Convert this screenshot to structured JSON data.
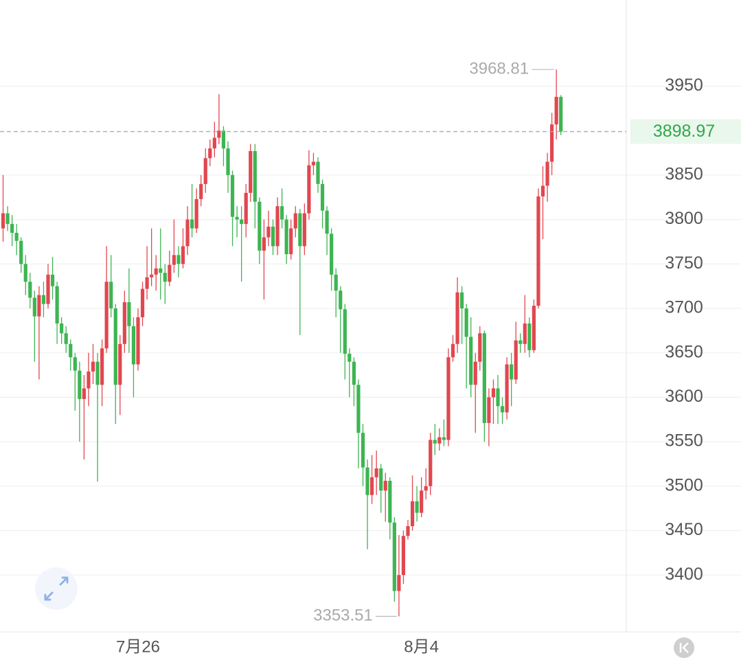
{
  "chart_data": {
    "type": "candlestick",
    "up_color": "#e1474f",
    "down_color": "#3db552",
    "ylim": [
      3336,
      4047
    ],
    "yticks": [
      3400,
      3450,
      3500,
      3550,
      3600,
      3650,
      3700,
      3750,
      3800,
      3850,
      3950
    ],
    "grid": true,
    "x_labels": [
      {
        "at": 30,
        "label": "7月26"
      },
      {
        "at": 93,
        "label": "8月4"
      }
    ],
    "high_mark": {
      "at": 123
    },
    "low_mark": {
      "at": 88
    },
    "last_price": {
      "at": 124
    },
    "candles": [
      {
        "open": 3790,
        "high": 3850,
        "low": 3775,
        "close": 3807
      },
      {
        "open": 3807,
        "high": 3815,
        "low": 3787,
        "close": 3795
      },
      {
        "open": 3795,
        "high": 3805,
        "low": 3770,
        "close": 3785
      },
      {
        "open": 3785,
        "high": 3795,
        "low": 3760,
        "close": 3776
      },
      {
        "open": 3776,
        "high": 3780,
        "low": 3740,
        "close": 3750
      },
      {
        "open": 3750,
        "high": 3760,
        "low": 3715,
        "close": 3730
      },
      {
        "open": 3730,
        "high": 3740,
        "low": 3700,
        "close": 3712
      },
      {
        "open": 3712,
        "high": 3720,
        "low": 3640,
        "close": 3691
      },
      {
        "open": 3691,
        "high": 3725,
        "low": 3620,
        "close": 3715
      },
      {
        "open": 3715,
        "high": 3730,
        "low": 3690,
        "close": 3705
      },
      {
        "open": 3705,
        "high": 3750,
        "low": 3700,
        "close": 3738
      },
      {
        "open": 3738,
        "high": 3758,
        "low": 3710,
        "close": 3725
      },
      {
        "open": 3725,
        "high": 3730,
        "low": 3660,
        "close": 3683
      },
      {
        "open": 3683,
        "high": 3690,
        "low": 3660,
        "close": 3672
      },
      {
        "open": 3672,
        "high": 3680,
        "low": 3650,
        "close": 3660
      },
      {
        "open": 3660,
        "high": 3665,
        "low": 3630,
        "close": 3645
      },
      {
        "open": 3645,
        "high": 3650,
        "low": 3585,
        "close": 3630
      },
      {
        "open": 3630,
        "high": 3640,
        "low": 3550,
        "close": 3598
      },
      {
        "open": 3598,
        "high": 3625,
        "low": 3530,
        "close": 3610
      },
      {
        "open": 3610,
        "high": 3650,
        "low": 3590,
        "close": 3629
      },
      {
        "open": 3629,
        "high": 3660,
        "low": 3615,
        "close": 3640
      },
      {
        "open": 3640,
        "high": 3650,
        "low": 3505,
        "close": 3614
      },
      {
        "open": 3614,
        "high": 3665,
        "low": 3590,
        "close": 3655
      },
      {
        "open": 3655,
        "high": 3770,
        "low": 3650,
        "close": 3730
      },
      {
        "open": 3730,
        "high": 3760,
        "low": 3690,
        "close": 3700
      },
      {
        "open": 3700,
        "high": 3705,
        "low": 3570,
        "close": 3614
      },
      {
        "open": 3614,
        "high": 3670,
        "low": 3580,
        "close": 3660
      },
      {
        "open": 3660,
        "high": 3720,
        "low": 3650,
        "close": 3707
      },
      {
        "open": 3707,
        "high": 3745,
        "low": 3650,
        "close": 3680
      },
      {
        "open": 3680,
        "high": 3690,
        "low": 3600,
        "close": 3637
      },
      {
        "open": 3637,
        "high": 3700,
        "low": 3630,
        "close": 3690
      },
      {
        "open": 3690,
        "high": 3730,
        "low": 3680,
        "close": 3722
      },
      {
        "open": 3722,
        "high": 3770,
        "low": 3710,
        "close": 3735
      },
      {
        "open": 3735,
        "high": 3790,
        "low": 3725,
        "close": 3738
      },
      {
        "open": 3738,
        "high": 3760,
        "low": 3720,
        "close": 3745
      },
      {
        "open": 3745,
        "high": 3790,
        "low": 3710,
        "close": 3740
      },
      {
        "open": 3740,
        "high": 3750,
        "low": 3705,
        "close": 3730
      },
      {
        "open": 3730,
        "high": 3765,
        "low": 3725,
        "close": 3749
      },
      {
        "open": 3749,
        "high": 3800,
        "low": 3740,
        "close": 3760
      },
      {
        "open": 3760,
        "high": 3770,
        "low": 3735,
        "close": 3750
      },
      {
        "open": 3750,
        "high": 3790,
        "low": 3745,
        "close": 3770
      },
      {
        "open": 3770,
        "high": 3815,
        "low": 3760,
        "close": 3800
      },
      {
        "open": 3800,
        "high": 3840,
        "low": 3780,
        "close": 3790
      },
      {
        "open": 3790,
        "high": 3835,
        "low": 3785,
        "close": 3823
      },
      {
        "open": 3823,
        "high": 3850,
        "low": 3815,
        "close": 3840
      },
      {
        "open": 3840,
        "high": 3880,
        "low": 3830,
        "close": 3869
      },
      {
        "open": 3869,
        "high": 3890,
        "low": 3860,
        "close": 3880
      },
      {
        "open": 3880,
        "high": 3910,
        "low": 3870,
        "close": 3892
      },
      {
        "open": 3892,
        "high": 3941,
        "low": 3885,
        "close": 3900
      },
      {
        "open": 3900,
        "high": 3905,
        "low": 3860,
        "close": 3880
      },
      {
        "open": 3880,
        "high": 3888,
        "low": 3830,
        "close": 3850
      },
      {
        "open": 3850,
        "high": 3855,
        "low": 3770,
        "close": 3803
      },
      {
        "open": 3803,
        "high": 3815,
        "low": 3780,
        "close": 3800
      },
      {
        "open": 3800,
        "high": 3815,
        "low": 3730,
        "close": 3795
      },
      {
        "open": 3795,
        "high": 3840,
        "low": 3780,
        "close": 3830
      },
      {
        "open": 3830,
        "high": 3885,
        "low": 3820,
        "close": 3877
      },
      {
        "open": 3877,
        "high": 3885,
        "low": 3790,
        "close": 3820
      },
      {
        "open": 3820,
        "high": 3825,
        "low": 3750,
        "close": 3765
      },
      {
        "open": 3765,
        "high": 3800,
        "low": 3710,
        "close": 3780
      },
      {
        "open": 3780,
        "high": 3810,
        "low": 3770,
        "close": 3792
      },
      {
        "open": 3792,
        "high": 3800,
        "low": 3760,
        "close": 3770
      },
      {
        "open": 3770,
        "high": 3825,
        "low": 3760,
        "close": 3815
      },
      {
        "open": 3815,
        "high": 3835,
        "low": 3790,
        "close": 3800
      },
      {
        "open": 3800,
        "high": 3805,
        "low": 3750,
        "close": 3761
      },
      {
        "open": 3761,
        "high": 3800,
        "low": 3755,
        "close": 3790
      },
      {
        "open": 3790,
        "high": 3815,
        "low": 3780,
        "close": 3807
      },
      {
        "open": 3807,
        "high": 3812,
        "low": 3670,
        "close": 3770
      },
      {
        "open": 3770,
        "high": 3818,
        "low": 3760,
        "close": 3807
      },
      {
        "open": 3807,
        "high": 3878,
        "low": 3800,
        "close": 3861
      },
      {
        "open": 3861,
        "high": 3875,
        "low": 3850,
        "close": 3865
      },
      {
        "open": 3865,
        "high": 3870,
        "low": 3830,
        "close": 3840
      },
      {
        "open": 3840,
        "high": 3845,
        "low": 3790,
        "close": 3810
      },
      {
        "open": 3810,
        "high": 3815,
        "low": 3760,
        "close": 3784
      },
      {
        "open": 3784,
        "high": 3790,
        "low": 3720,
        "close": 3738
      },
      {
        "open": 3738,
        "high": 3745,
        "low": 3690,
        "close": 3720
      },
      {
        "open": 3720,
        "high": 3725,
        "low": 3650,
        "close": 3699
      },
      {
        "open": 3699,
        "high": 3705,
        "low": 3620,
        "close": 3649
      },
      {
        "open": 3649,
        "high": 3655,
        "low": 3600,
        "close": 3640
      },
      {
        "open": 3640,
        "high": 3645,
        "low": 3590,
        "close": 3614
      },
      {
        "open": 3614,
        "high": 3620,
        "low": 3520,
        "close": 3560
      },
      {
        "open": 3560,
        "high": 3570,
        "low": 3500,
        "close": 3521
      },
      {
        "open": 3521,
        "high": 3530,
        "low": 3429,
        "close": 3490
      },
      {
        "open": 3490,
        "high": 3535,
        "low": 3480,
        "close": 3510
      },
      {
        "open": 3510,
        "high": 3540,
        "low": 3490,
        "close": 3520
      },
      {
        "open": 3520,
        "high": 3525,
        "low": 3470,
        "close": 3495
      },
      {
        "open": 3495,
        "high": 3515,
        "low": 3460,
        "close": 3506
      },
      {
        "open": 3506,
        "high": 3510,
        "low": 3440,
        "close": 3459
      },
      {
        "open": 3459,
        "high": 3465,
        "low": 3370,
        "close": 3382
      },
      {
        "open": 3382,
        "high": 3445,
        "low": 3353.51,
        "close": 3400
      },
      {
        "open": 3400,
        "high": 3450,
        "low": 3390,
        "close": 3444
      },
      {
        "open": 3444,
        "high": 3462,
        "low": 3440,
        "close": 3455
      },
      {
        "open": 3455,
        "high": 3512,
        "low": 3450,
        "close": 3483
      },
      {
        "open": 3483,
        "high": 3500,
        "low": 3460,
        "close": 3470
      },
      {
        "open": 3470,
        "high": 3510,
        "low": 3465,
        "close": 3495
      },
      {
        "open": 3495,
        "high": 3520,
        "low": 3485,
        "close": 3500
      },
      {
        "open": 3500,
        "high": 3560,
        "low": 3490,
        "close": 3552
      },
      {
        "open": 3552,
        "high": 3570,
        "low": 3535,
        "close": 3548
      },
      {
        "open": 3548,
        "high": 3565,
        "low": 3540,
        "close": 3555
      },
      {
        "open": 3555,
        "high": 3575,
        "low": 3545,
        "close": 3552
      },
      {
        "open": 3552,
        "high": 3655,
        "low": 3545,
        "close": 3645
      },
      {
        "open": 3645,
        "high": 3670,
        "low": 3640,
        "close": 3660
      },
      {
        "open": 3660,
        "high": 3735,
        "low": 3650,
        "close": 3718
      },
      {
        "open": 3718,
        "high": 3725,
        "low": 3660,
        "close": 3700
      },
      {
        "open": 3700,
        "high": 3705,
        "low": 3610,
        "close": 3668
      },
      {
        "open": 3668,
        "high": 3690,
        "low": 3600,
        "close": 3614
      },
      {
        "open": 3614,
        "high": 3650,
        "low": 3560,
        "close": 3640
      },
      {
        "open": 3640,
        "high": 3680,
        "low": 3630,
        "close": 3672
      },
      {
        "open": 3672,
        "high": 3675,
        "low": 3550,
        "close": 3571
      },
      {
        "open": 3571,
        "high": 3610,
        "low": 3545,
        "close": 3600
      },
      {
        "open": 3600,
        "high": 3620,
        "low": 3570,
        "close": 3610
      },
      {
        "open": 3610,
        "high": 3625,
        "low": 3570,
        "close": 3590
      },
      {
        "open": 3590,
        "high": 3600,
        "low": 3570,
        "close": 3583
      },
      {
        "open": 3583,
        "high": 3645,
        "low": 3575,
        "close": 3637
      },
      {
        "open": 3637,
        "high": 3650,
        "low": 3590,
        "close": 3620
      },
      {
        "open": 3620,
        "high": 3685,
        "low": 3615,
        "close": 3664
      },
      {
        "open": 3664,
        "high": 3672,
        "low": 3650,
        "close": 3660
      },
      {
        "open": 3660,
        "high": 3715,
        "low": 3650,
        "close": 3683
      },
      {
        "open": 3683,
        "high": 3690,
        "low": 3645,
        "close": 3653
      },
      {
        "open": 3653,
        "high": 3710,
        "low": 3650,
        "close": 3703
      },
      {
        "open": 3703,
        "high": 3835,
        "low": 3700,
        "close": 3826
      },
      {
        "open": 3826,
        "high": 3860,
        "low": 3778,
        "close": 3838
      },
      {
        "open": 3838,
        "high": 3875,
        "low": 3820,
        "close": 3865
      },
      {
        "open": 3865,
        "high": 3920,
        "low": 3850,
        "close": 3907
      },
      {
        "open": 3907,
        "high": 3968.81,
        "low": 3890,
        "close": 3938
      },
      {
        "open": 3938,
        "high": 3940,
        "low": 3895,
        "close": 3898.97
      }
    ]
  }
}
